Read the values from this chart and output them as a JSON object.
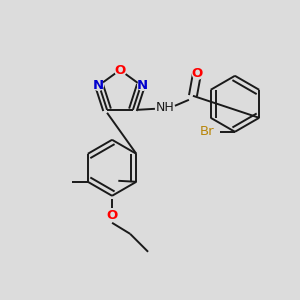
{
  "bg_color": "#dcdcdc",
  "bond_color": "#1a1a1a",
  "lw": 1.4,
  "dlw": 1.4,
  "doff": 0.012,
  "atom_bg": "#dcdcdc",
  "colors": {
    "O": "#ff0000",
    "N": "#0000cd",
    "Br": "#b8860b",
    "C": "#1a1a1a",
    "bg": "#dcdcdc"
  },
  "fontsize": 9.5
}
